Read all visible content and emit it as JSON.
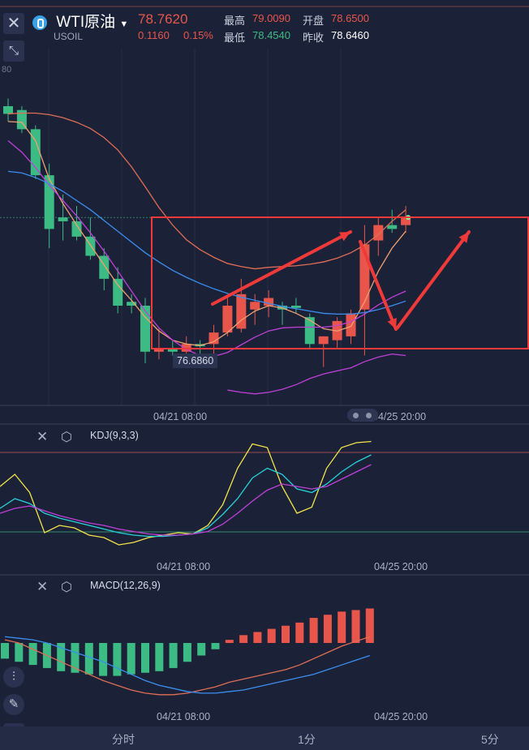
{
  "header": {
    "symbol_name": "WTI原油",
    "symbol_code": "USOIL",
    "last_price": "78.7620",
    "change": "0.1160",
    "change_pct": "0.15%",
    "high_label": "最高",
    "high_value": "79.0090",
    "low_label": "最低",
    "low_value": "78.4540",
    "open_label": "开盘",
    "open_value": "78.6500",
    "prev_close_label": "昨收",
    "prev_close_value": "78.6460",
    "cut_price_label": "80"
  },
  "colors": {
    "background": "#1b2238",
    "up": "#e8564b",
    "down": "#3dbb84",
    "ma_red": "#e06d55",
    "ma_orange": "#f0a070",
    "ma_magenta": "#c03fd8",
    "ma_blue": "#3a8ef0",
    "annotation_red": "#f03a3a",
    "kdj_k": "#f2e34a",
    "kdj_d": "#28d0d8",
    "kdj_j": "#c03fd8"
  },
  "main_panel": {
    "time_axis": [
      "04/21 08:00",
      "04/25 20:00"
    ],
    "min_price_tag": "76.6860"
  },
  "kdj_panel": {
    "label": "KDJ(9,3,3)",
    "time_axis": [
      "04/21 08:00",
      "04/25 20:00"
    ]
  },
  "macd_panel": {
    "label": "MACD(12,26,9)",
    "time_axis": [
      "04/21 08:00",
      "04/25 20:00"
    ]
  },
  "tabs": [
    "分时",
    "1分",
    "5分"
  ],
  "chart_data": [
    {
      "type": "candlestick",
      "series": [
        {
          "name": "candles",
          "ohlc": [
            [
              80.05,
              80.15,
              79.85,
              79.95
            ],
            [
              80.0,
              80.05,
              79.7,
              79.75
            ],
            [
              79.75,
              79.8,
              79.1,
              79.15
            ],
            [
              79.15,
              79.3,
              78.2,
              78.45
            ],
            [
              78.6,
              78.9,
              78.3,
              78.55
            ],
            [
              78.55,
              78.75,
              78.3,
              78.35
            ],
            [
              78.35,
              78.6,
              78.05,
              78.1
            ],
            [
              78.1,
              78.2,
              77.65,
              77.8
            ],
            [
              77.8,
              77.95,
              77.35,
              77.45
            ],
            [
              77.5,
              77.6,
              77.35,
              77.45
            ],
            [
              77.45,
              77.55,
              76.7,
              76.85
            ],
            [
              76.85,
              77.15,
              76.75,
              76.9
            ],
            [
              76.9,
              77.0,
              76.8,
              76.85
            ],
            [
              76.85,
              77.05,
              76.75,
              76.95
            ],
            [
              76.95,
              77.0,
              76.7,
              76.92
            ],
            [
              76.95,
              77.2,
              76.8,
              77.1
            ],
            [
              77.1,
              77.55,
              77.05,
              77.45
            ],
            [
              77.15,
              77.8,
              77.1,
              77.6
            ],
            [
              77.4,
              77.6,
              77.2,
              77.5
            ],
            [
              77.45,
              77.65,
              77.3,
              77.55
            ],
            [
              77.45,
              77.5,
              77.2,
              77.4
            ],
            [
              77.45,
              77.55,
              77.35,
              77.42
            ],
            [
              77.3,
              77.35,
              76.9,
              76.95
            ],
            [
              76.95,
              77.05,
              76.65,
              77.05
            ],
            [
              77.0,
              77.3,
              76.9,
              77.25
            ],
            [
              77.05,
              77.4,
              76.95,
              77.35
            ],
            [
              77.4,
              78.5,
              76.8,
              78.25
            ],
            [
              78.3,
              78.6,
              78.1,
              78.5
            ],
            [
              78.5,
              78.7,
              78.4,
              78.45
            ],
            [
              78.5,
              78.75,
              78.4,
              78.6
            ]
          ]
        },
        {
          "name": "ma_red",
          "y": [
            79.95,
            79.96,
            79.96,
            79.94,
            79.9,
            79.84,
            79.76,
            79.64,
            79.48,
            79.26,
            79.0,
            78.73,
            78.5,
            78.31,
            78.18,
            78.08,
            78.0,
            77.96,
            77.93,
            77.95,
            77.96,
            77.97,
            77.99,
            78.02,
            78.07,
            78.14,
            78.24,
            78.38,
            78.55,
            78.7
          ]
        },
        {
          "name": "ma_orange",
          "y": [
            79.85,
            79.84,
            79.6,
            79.1,
            78.78,
            78.5,
            78.24,
            77.98,
            77.72,
            77.52,
            77.3,
            77.12,
            77.0,
            76.95,
            76.93,
            76.98,
            77.1,
            77.26,
            77.38,
            77.45,
            77.42,
            77.35,
            77.26,
            77.15,
            77.12,
            77.18,
            77.5,
            77.9,
            78.2,
            78.42
          ]
        },
        {
          "name": "ma_magenta",
          "y": [
            79.6,
            79.45,
            79.25,
            79.02,
            78.82,
            78.62,
            78.4,
            78.16,
            77.9,
            77.64,
            77.38,
            77.16,
            77.0,
            76.88,
            76.8,
            76.79,
            76.84,
            76.94,
            77.04,
            77.12,
            77.16,
            77.17,
            77.17,
            77.17,
            77.19,
            77.24,
            77.34,
            77.46,
            77.56,
            77.64
          ]
        },
        {
          "name": "ma_blue",
          "y": [
            79.2,
            79.18,
            79.12,
            79.04,
            78.94,
            78.82,
            78.7,
            78.56,
            78.42,
            78.28,
            78.14,
            78.02,
            77.91,
            77.82,
            77.74,
            77.67,
            77.61,
            77.56,
            77.52,
            77.48,
            77.44,
            77.41,
            77.38,
            77.35,
            77.34,
            77.34,
            77.36,
            77.4,
            77.45,
            77.51
          ]
        },
        {
          "name": "ma_violet_low",
          "y": [
            null,
            null,
            null,
            null,
            null,
            null,
            null,
            null,
            null,
            null,
            null,
            null,
            null,
            null,
            null,
            null,
            76.35,
            76.32,
            76.3,
            76.32,
            76.36,
            76.42,
            76.5,
            76.56,
            76.6,
            76.64,
            76.72,
            76.78,
            76.82,
            76.8
          ]
        }
      ],
      "ylim": [
        76.15,
        80.8
      ]
    },
    {
      "type": "line",
      "title": "KDJ(9,3,3)",
      "series": [
        {
          "name": "K",
          "y": [
            60,
            70,
            55,
            22,
            28,
            26,
            20,
            18,
            12,
            14,
            18,
            20,
            22,
            21,
            28,
            45,
            75,
            95,
            92,
            60,
            38,
            43,
            75,
            92,
            96,
            97
          ]
        },
        {
          "name": "D",
          "y": [
            42,
            50,
            46,
            38,
            34,
            31,
            28,
            25,
            22,
            20,
            19,
            19,
            20,
            21,
            26,
            37,
            50,
            67,
            75,
            70,
            58,
            55,
            62,
            72,
            80,
            86
          ]
        },
        {
          "name": "J",
          "y": [
            38,
            42,
            44,
            40,
            36,
            33,
            30,
            28,
            25,
            23,
            21,
            20,
            20,
            21,
            23,
            29,
            38,
            48,
            57,
            62,
            60,
            58,
            60,
            66,
            72,
            78
          ]
        }
      ],
      "ylim": [
        0,
        100
      ]
    },
    {
      "type": "bar",
      "title": "MACD(12,26,9)",
      "series": [
        {
          "name": "histogram",
          "values": [
            -0.1,
            -0.12,
            -0.14,
            -0.16,
            -0.18,
            -0.19,
            -0.2,
            -0.21,
            -0.21,
            -0.2,
            -0.19,
            -0.18,
            -0.16,
            -0.12,
            -0.08,
            -0.04,
            0.02,
            0.05,
            0.07,
            0.09,
            0.11,
            0.13,
            0.16,
            0.18,
            0.2,
            0.21,
            0.22
          ]
        },
        {
          "name": "DIF",
          "y": [
            0.02,
            0.0,
            -0.04,
            -0.08,
            -0.12,
            -0.16,
            -0.2,
            -0.24,
            -0.27,
            -0.3,
            -0.32,
            -0.33,
            -0.33,
            -0.32,
            -0.3,
            -0.28,
            -0.25,
            -0.23,
            -0.21,
            -0.19,
            -0.17,
            -0.14,
            -0.1,
            -0.06,
            -0.02,
            0.01,
            0.04
          ]
        },
        {
          "name": "DEA",
          "y": [
            0.04,
            0.03,
            0.02,
            0.0,
            -0.03,
            -0.06,
            -0.09,
            -0.12,
            -0.16,
            -0.2,
            -0.24,
            -0.27,
            -0.29,
            -0.31,
            -0.32,
            -0.32,
            -0.31,
            -0.3,
            -0.28,
            -0.26,
            -0.24,
            -0.22,
            -0.2,
            -0.17,
            -0.14,
            -0.11,
            -0.08
          ]
        }
      ],
      "ylim": [
        -0.45,
        0.3
      ]
    }
  ]
}
